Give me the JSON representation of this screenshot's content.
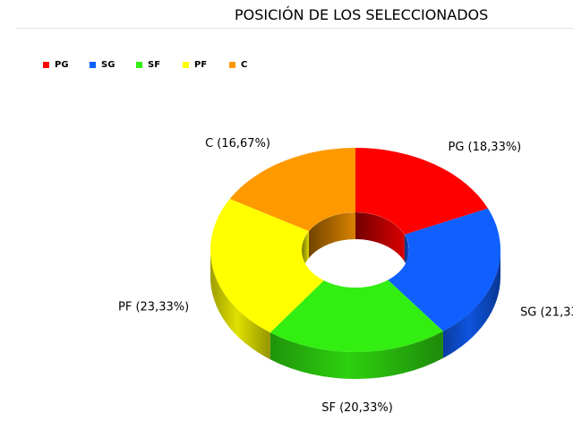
{
  "chart_data": {
    "type": "pie",
    "style": "3d-donut",
    "title": "POSICIÓN DE LOS SELECCIONADOS",
    "legend_position": "top-left",
    "categories": [
      "PG",
      "SG",
      "SF",
      "PF",
      "C"
    ],
    "values": [
      18.33,
      21.33,
      20.33,
      23.33,
      16.67
    ],
    "labels": [
      "PG (18,33%)",
      "SG (21,33",
      "SF (20,33%)",
      "PF (23,33%)",
      "C (16,67%)"
    ],
    "colors": [
      "#ff0000",
      "#1060ff",
      "#33ee11",
      "#ffff00",
      "#ff9900"
    ]
  }
}
